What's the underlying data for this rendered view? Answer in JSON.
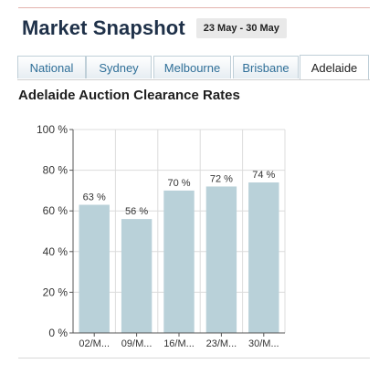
{
  "header": {
    "title": "Market Snapshot",
    "date_range": "23 May - 30 May"
  },
  "tabs": [
    {
      "label": "National",
      "active": false
    },
    {
      "label": "Sydney",
      "active": false
    },
    {
      "label": "Melbourne",
      "active": false
    },
    {
      "label": "Brisbane",
      "active": false
    },
    {
      "label": "Adelaide",
      "active": true
    }
  ],
  "section": {
    "title": "Adelaide Auction Clearance Rates"
  },
  "colors": {
    "bar": "#b9d1d9",
    "title": "#1f3149",
    "tab_text": "#2f6f98"
  },
  "chart_data": {
    "type": "bar",
    "categories": [
      "02/M...",
      "09/M...",
      "16/M...",
      "23/M...",
      "30/M..."
    ],
    "values": [
      63,
      56,
      70,
      72,
      74
    ],
    "data_labels": [
      "63 %",
      "56 %",
      "70 %",
      "72 %",
      "74 %"
    ],
    "ylim": [
      0,
      100
    ],
    "yticks": [
      0,
      20,
      40,
      60,
      80,
      100
    ],
    "ytick_labels": [
      "0 %",
      "20 %",
      "40 %",
      "60 %",
      "80 %",
      "100 %"
    ],
    "grid": true
  }
}
